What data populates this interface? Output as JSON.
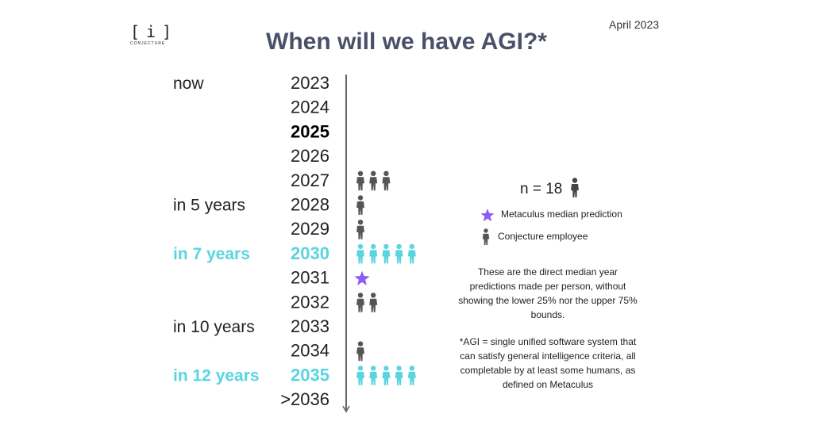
{
  "logo": {
    "left": "[",
    "center": "i",
    "right": "]",
    "word": "CONJECTURE"
  },
  "date": "April 2023",
  "title": "When will we have AGI?*",
  "colors": {
    "text": "#222222",
    "title": "#4a5068",
    "highlight": "#5ad5e0",
    "person": "#555555",
    "star": "#8b5cf6",
    "axis": "#666666"
  },
  "chart_data": {
    "type": "table",
    "rows": [
      {
        "label": "now",
        "year": "2023",
        "employees": 0,
        "metaculus": 0,
        "style": "normal"
      },
      {
        "label": "",
        "year": "2024",
        "employees": 0,
        "metaculus": 0,
        "style": "normal"
      },
      {
        "label": "",
        "year": "2025",
        "employees": 0,
        "metaculus": 0,
        "style": "bold"
      },
      {
        "label": "",
        "year": "2026",
        "employees": 0,
        "metaculus": 0,
        "style": "normal"
      },
      {
        "label": "",
        "year": "2027",
        "employees": 3,
        "metaculus": 0,
        "style": "normal"
      },
      {
        "label": "in 5 years",
        "year": "2028",
        "employees": 1,
        "metaculus": 0,
        "style": "normal"
      },
      {
        "label": "",
        "year": "2029",
        "employees": 1,
        "metaculus": 0,
        "style": "normal"
      },
      {
        "label": "in 7 years",
        "year": "2030",
        "employees": 5,
        "metaculus": 0,
        "style": "highlight"
      },
      {
        "label": "",
        "year": "2031",
        "employees": 0,
        "metaculus": 1,
        "style": "normal"
      },
      {
        "label": "",
        "year": "2032",
        "employees": 2,
        "metaculus": 0,
        "style": "normal"
      },
      {
        "label": "in 10 years",
        "year": "2033",
        "employees": 0,
        "metaculus": 0,
        "style": "normal"
      },
      {
        "label": "",
        "year": "2034",
        "employees": 1,
        "metaculus": 0,
        "style": "normal"
      },
      {
        "label": "in 12 years",
        "year": "2035",
        "employees": 5,
        "metaculus": 0,
        "style": "highlight"
      },
      {
        "label": "",
        "year": ">2036",
        "employees": 0,
        "metaculus": 0,
        "style": "normal"
      }
    ]
  },
  "legend": {
    "n_label": "n = 18",
    "metaculus": "Metaculus median prediction",
    "employee": "Conjecture employee"
  },
  "notes": {
    "method": "These are the direct median year predictions made per person, without showing the lower 25% nor the upper 75% bounds.",
    "definition": "*AGI = single unified software system that can satisfy general intelligence criteria, all completable by at least some humans, as defined on Metaculus"
  }
}
